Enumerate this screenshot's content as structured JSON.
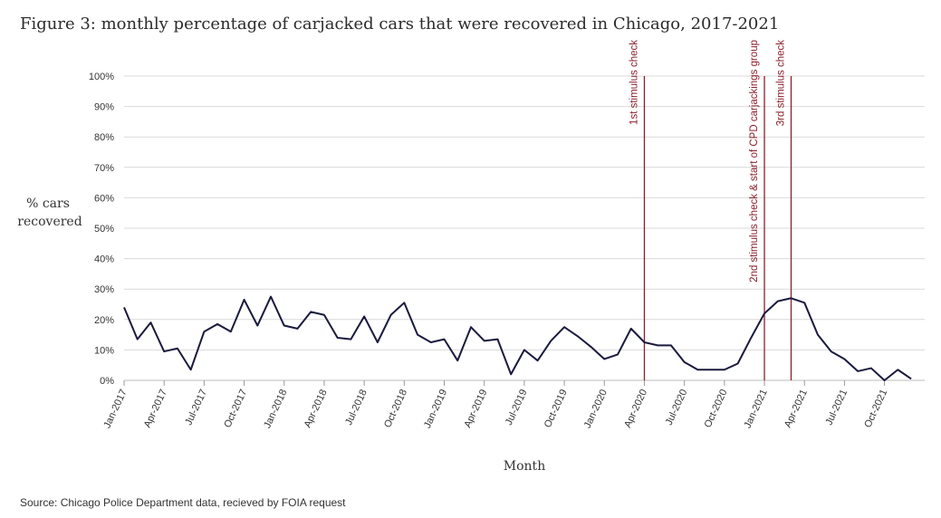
{
  "title": "Figure 3:  monthly percentage of carjacked cars that were recovered in Chicago, 2017-2021",
  "source": "Source: Chicago Police Department data, recieved by FOIA request",
  "colors": {
    "line": "#1a1a3e",
    "annotation": "#8a1f2b",
    "grid": "#d9d9d9"
  },
  "chart_data": {
    "type": "line",
    "xlabel": "Month",
    "ylabel": [
      "% cars",
      "recovered"
    ],
    "ylim": [
      0,
      100
    ],
    "y_ticks": [
      "0%",
      "10%",
      "20%",
      "30%",
      "40%",
      "50%",
      "60%",
      "70%",
      "80%",
      "90%",
      "100%"
    ],
    "x_tick_labels": [
      "Jan-2017",
      "Apr-2017",
      "Jul-2017",
      "Oct-2017",
      "Jan-2018",
      "Apr-2018",
      "Jul-2018",
      "Oct-2018",
      "Jan-2019",
      "Apr-2019",
      "Jul-2019",
      "Oct-2019",
      "Jan-2020",
      "Apr-2020",
      "Jul-2020",
      "Oct-2020",
      "Jan-2021",
      "Apr-2021",
      "Jul-2021",
      "Oct-2021"
    ],
    "grid": true,
    "series": [
      {
        "start_month": "Jan-2017",
        "values": [
          24,
          13.5,
          19,
          9.5,
          10.5,
          3.5,
          16,
          18.5,
          16,
          26.5,
          18,
          27.5,
          18,
          17,
          22.5,
          21.5,
          14,
          13.5,
          21,
          12.5,
          21.5,
          25.5,
          15,
          12.5,
          13.5,
          6.5,
          17.5,
          13,
          13.5,
          2,
          10,
          6.5,
          13,
          17.5,
          14.5,
          11,
          7,
          8.5,
          17,
          12.5,
          11.5,
          11.5,
          6,
          3.5,
          3.5,
          3.5,
          5.5,
          14,
          22,
          26,
          27,
          25.5,
          15,
          9.5,
          7,
          3,
          4,
          0,
          3.5,
          0.5
        ]
      }
    ],
    "annotations": [
      {
        "label": "1st stimulus check",
        "month": "Apr-2020"
      },
      {
        "label": "2nd stimulus check & start of CPD carjackings group",
        "month": "Jan-2021"
      },
      {
        "label": "3rd stimulus check",
        "month": "Mar-2021"
      }
    ]
  }
}
